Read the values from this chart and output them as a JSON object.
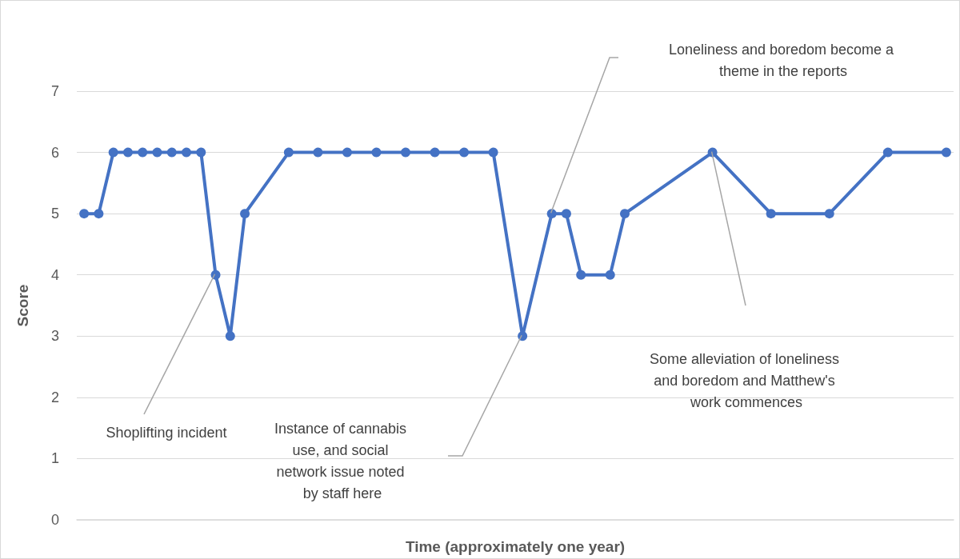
{
  "chart_data": {
    "type": "line",
    "xlabel": "Time (approximately one year)",
    "ylabel": "Score",
    "categories": [
      null,
      null,
      null,
      null,
      null,
      null,
      null,
      null,
      null,
      null,
      null,
      null,
      null,
      null,
      null,
      null,
      null,
      null,
      null,
      null,
      null,
      null,
      null,
      null,
      null,
      null,
      null,
      null,
      null,
      null,
      null,
      null,
      null,
      null,
      null,
      null,
      null,
      null,
      null,
      null,
      null,
      null,
      null,
      null,
      null,
      null,
      null,
      null,
      null,
      null,
      null,
      null,
      null,
      null,
      null,
      null,
      null,
      null,
      null,
      null
    ],
    "series": [
      {
        "color": "#4472c4",
        "values": [
          5,
          5,
          6,
          6,
          6,
          6,
          6,
          6,
          6,
          4,
          3,
          5,
          null,
          null,
          6,
          null,
          6,
          null,
          6,
          null,
          6,
          null,
          6,
          null,
          6,
          null,
          6,
          null,
          6,
          null,
          3,
          null,
          5,
          5,
          4,
          null,
          4,
          5,
          null,
          null,
          null,
          null,
          null,
          6,
          null,
          null,
          null,
          5,
          null,
          null,
          null,
          5,
          null,
          null,
          null,
          6,
          null,
          null,
          null,
          6
        ]
      }
    ],
    "ylim": [
      0,
      7
    ],
    "yticks": [
      0,
      1,
      2,
      3,
      4,
      5,
      6,
      7
    ],
    "tick_labels": "y",
    "grid": "y",
    "marker": "circle",
    "line_style": "solid",
    "annotations": [
      "Shoplifting incident",
      "Instance of cannabis use, and social network issue noted by staff here",
      "Loneliness and boredom become a theme in the reports",
      "Some alleviation of loneliness and boredom and Matthew's work commences"
    ]
  }
}
